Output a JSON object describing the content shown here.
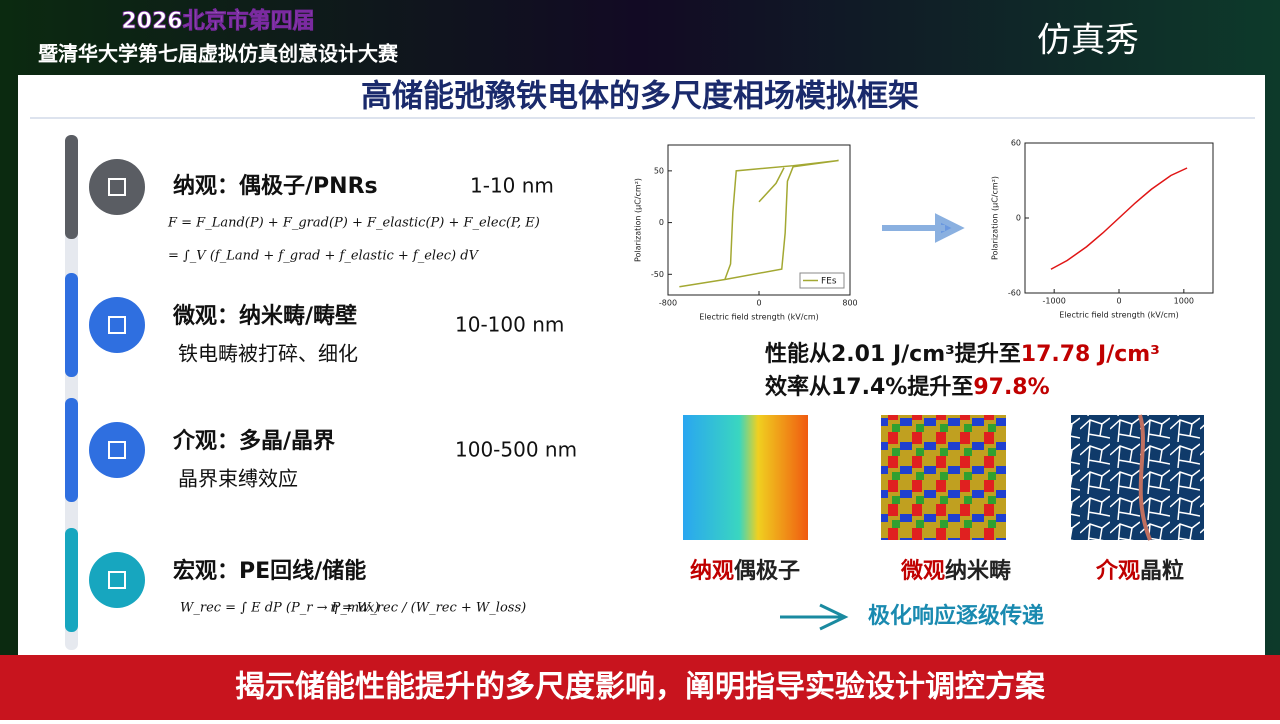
{
  "header": {
    "line1": "2026北京市第四届",
    "line2": "暨清华大学第七届虚拟仿真创意设计大赛",
    "logo": "仿真秀"
  },
  "title": "高储能弛豫铁电体的多尺度相场模拟框架",
  "scales": [
    {
      "label": "纳观：偶极子/PNRs",
      "range": "1-10 nm",
      "icon_color": "#5a5d63",
      "equations": [
        "F = F_Land(P) + F_grad(P) + F_elastic(P) + F_elec(P, E)",
        "= ∫_V (f_Land + f_grad + f_elastic + f_elec) dV"
      ]
    },
    {
      "label": "微观：纳米畴/畴壁",
      "range": "10-100 nm",
      "icon_color": "#2f6fe0",
      "note": "铁电畴被打碎、细化"
    },
    {
      "label": "介观：多晶/晶界",
      "range": "100-500 nm",
      "icon_color": "#2f6fe0",
      "note": "晶界束缚效应"
    },
    {
      "label": "宏观：PE回线/储能",
      "icon_color": "#17a6bf",
      "equations": [
        "W_rec = ∫ E dP  (P_r → P_max)",
        "η = W_rec / (W_rec + W_loss)"
      ]
    }
  ],
  "chart_data": [
    {
      "type": "line",
      "x_label": "Electric field strength (kV/cm)",
      "y_label": "Polarization (μC/cm²)",
      "xlim": [
        -800,
        800
      ],
      "ylim": [
        -70,
        75
      ],
      "xticks": [
        -800,
        0,
        800
      ],
      "yticks": [
        -50,
        0,
        50
      ],
      "x": [
        700,
        300,
        -200,
        -230,
        -250,
        -300,
        -700,
        null,
        -700,
        -300,
        200,
        230,
        250,
        300,
        700,
        null,
        0,
        150,
        220
      ],
      "series": [
        {
          "name": "FEs",
          "color": "#a3a832",
          "values": [
            60,
            55,
            50,
            10,
            -40,
            -55,
            -62,
            null,
            -62,
            -55,
            -45,
            -10,
            40,
            54,
            60,
            null,
            20,
            38,
            53
          ]
        }
      ],
      "legend": "lower right"
    },
    {
      "type": "line",
      "x_label": "Electric field strength (kV/cm)",
      "y_label": "Polarization (μC/cm²)",
      "xlim": [
        -1450,
        1450
      ],
      "ylim": [
        -60,
        60
      ],
      "xticks": [
        -1000,
        0,
        1000
      ],
      "yticks": [
        -60,
        0,
        60
      ],
      "x": [
        -1050,
        -800,
        -500,
        -250,
        0,
        250,
        500,
        800,
        1050
      ],
      "series": [
        {
          "color": "#e01515",
          "values": [
            -41,
            -34,
            -23,
            -12,
            0,
            12,
            23,
            34,
            40
          ]
        }
      ]
    }
  ],
  "results": [
    [
      {
        "text": "性能从2.01 J/cm³提升至",
        "color": "#111111"
      },
      {
        "text": "17.78 J/cm³",
        "color": "#c00000"
      }
    ],
    [
      {
        "text": "效率从17.4%提升至",
        "color": "#111111"
      },
      {
        "text": "97.8%",
        "color": "#c00000"
      }
    ]
  ],
  "images": [
    [
      {
        "text": "纳观",
        "color": "#c00000"
      },
      {
        "text": "偶极子",
        "color": "#222222"
      }
    ],
    [
      {
        "text": "微观",
        "color": "#c00000"
      },
      {
        "text": "纳米畴",
        "color": "#222222"
      }
    ],
    [
      {
        "text": "介观",
        "color": "#c00000"
      },
      {
        "text": "晶粒",
        "color": "#222222"
      }
    ]
  ],
  "flow": "极化响应逐级传递",
  "footer": "揭示储能性能提升的多尺度影响，阐明指导实验设计调控方案"
}
